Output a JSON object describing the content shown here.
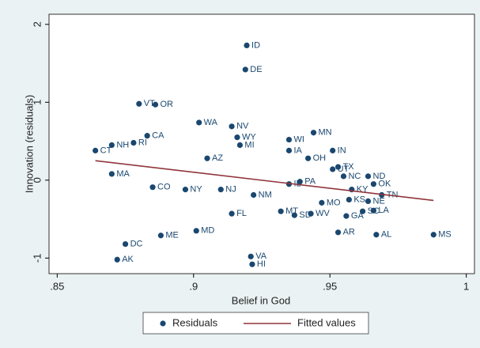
{
  "chart_data": {
    "type": "scatter",
    "x_label": "Belief in God",
    "y_label": "Innovation (residuals)",
    "xlim": [
      0.847,
      1.003
    ],
    "ylim": [
      -1.2,
      2.13
    ],
    "xticks": [
      {
        "value": 0.85,
        "label": ".85"
      },
      {
        "value": 0.9,
        "label": ".9"
      },
      {
        "value": 0.95,
        "label": ".95"
      },
      1
    ],
    "yticks": [
      -1,
      0,
      1,
      2
    ],
    "legend": "bottom",
    "series": [
      {
        "name": "Residuals",
        "type": "scatter",
        "color": "#1a476f",
        "labels": [
          "ID",
          "DE",
          "VT",
          "OR",
          "WA",
          "NV",
          "WY",
          "MN",
          "WI",
          "MI",
          "IA",
          "IN",
          "CA",
          "NH",
          "RI",
          "CT",
          "AZ",
          "OH",
          "UT",
          "TX",
          "MA",
          "NC",
          "ND",
          "OK",
          "PA",
          "IL",
          "CO",
          "NY",
          "NJ",
          "KY",
          "TN",
          "NM",
          "KS",
          "NE",
          "MO",
          "SC",
          "LA",
          "MT",
          "FL",
          "SD",
          "WV",
          "GA",
          "MD",
          "AR",
          "AL",
          "MS",
          "ME",
          "DC",
          "AK",
          "VA",
          "HI"
        ],
        "x": [
          0.9195,
          0.919,
          0.88,
          0.886,
          0.902,
          0.914,
          0.916,
          0.944,
          0.935,
          0.917,
          0.935,
          0.951,
          0.883,
          0.87,
          0.878,
          0.864,
          0.905,
          0.942,
          0.951,
          0.953,
          0.87,
          0.955,
          0.964,
          0.966,
          0.939,
          0.935,
          0.885,
          0.897,
          0.91,
          0.958,
          0.969,
          0.922,
          0.957,
          0.964,
          0.947,
          0.962,
          0.966,
          0.932,
          0.914,
          0.937,
          0.943,
          0.956,
          0.901,
          0.953,
          0.967,
          0.988,
          0.888,
          0.875,
          0.872,
          0.921,
          0.9215
        ],
        "values": [
          1.73,
          1.42,
          0.98,
          0.97,
          0.74,
          0.69,
          0.55,
          0.61,
          0.52,
          0.45,
          0.38,
          0.38,
          0.57,
          0.45,
          0.48,
          0.38,
          0.28,
          0.28,
          0.14,
          0.17,
          0.08,
          0.05,
          0.05,
          -0.05,
          -0.02,
          -0.05,
          -0.09,
          -0.12,
          -0.12,
          -0.12,
          -0.19,
          -0.19,
          -0.25,
          -0.27,
          -0.29,
          -0.4,
          -0.39,
          -0.4,
          -0.43,
          -0.45,
          -0.43,
          -0.46,
          -0.65,
          -0.67,
          -0.7,
          -0.7,
          -0.71,
          -0.82,
          -1.02,
          -0.98,
          -1.08
        ]
      },
      {
        "name": "Fitted values",
        "type": "line",
        "color": "#90353b",
        "x": [
          0.864,
          0.988
        ],
        "values": [
          0.25,
          -0.26
        ]
      }
    ]
  }
}
